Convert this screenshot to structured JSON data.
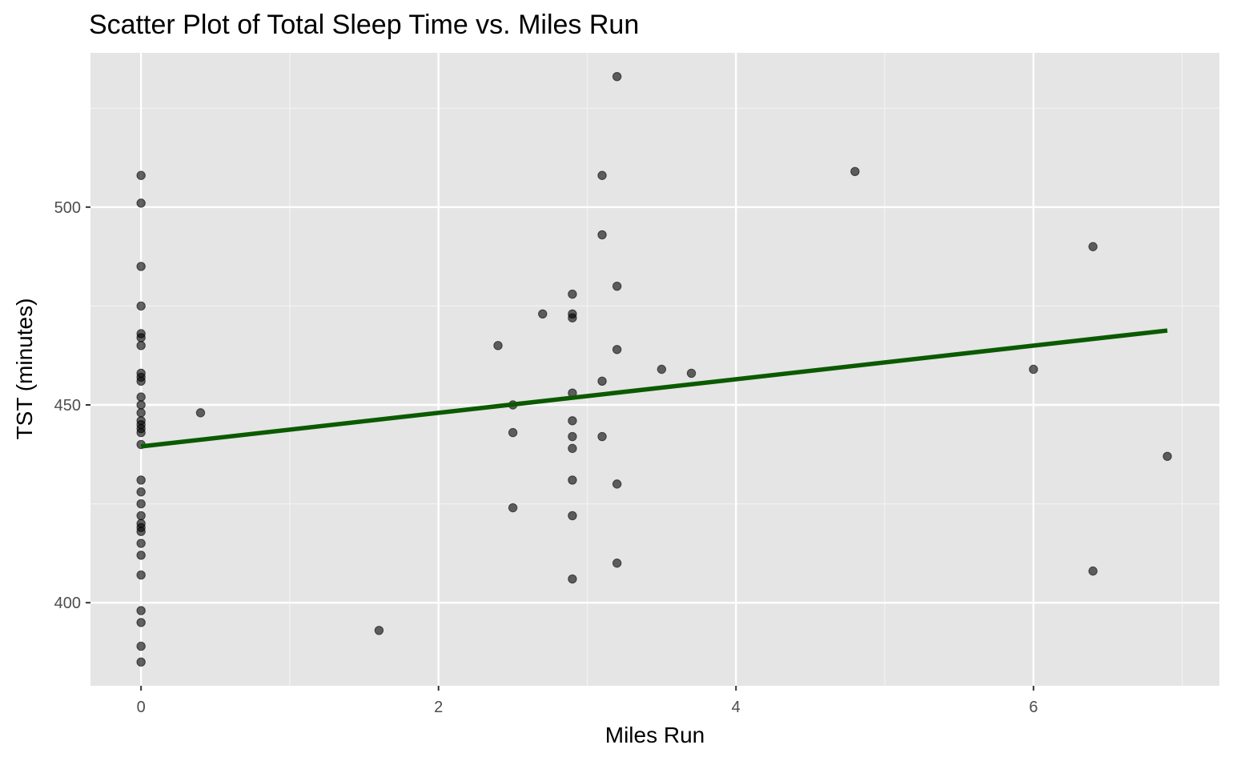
{
  "chart_data": {
    "type": "scatter",
    "title": "Scatter Plot of Total Sleep Time vs. Miles Run",
    "xlabel": "Miles Run",
    "ylabel": "TST (minutes)",
    "xlim": [
      -0.34,
      7.25
    ],
    "ylim": [
      379,
      539
    ],
    "x_ticks": [
      0,
      2,
      4,
      6
    ],
    "y_ticks": [
      400,
      450,
      500
    ],
    "x_tick_labels": [
      "0",
      "2",
      "4",
      "6"
    ],
    "y_tick_labels": [
      "400",
      "450",
      "500"
    ],
    "grid": true,
    "colors": {
      "panel_background": "#e5e5e5",
      "grid_major": "#ffffff",
      "grid_minor": "#f2f2f2",
      "points": "#000000",
      "trend_line": "#0b5a00"
    },
    "points": [
      {
        "x": 0,
        "y": 508
      },
      {
        "x": 0,
        "y": 501
      },
      {
        "x": 0,
        "y": 485
      },
      {
        "x": 0,
        "y": 475
      },
      {
        "x": 0,
        "y": 468
      },
      {
        "x": 0,
        "y": 467
      },
      {
        "x": 0,
        "y": 465
      },
      {
        "x": 0,
        "y": 458
      },
      {
        "x": 0,
        "y": 457
      },
      {
        "x": 0,
        "y": 456
      },
      {
        "x": 0,
        "y": 452
      },
      {
        "x": 0,
        "y": 450
      },
      {
        "x": 0,
        "y": 448
      },
      {
        "x": 0,
        "y": 446
      },
      {
        "x": 0,
        "y": 445
      },
      {
        "x": 0,
        "y": 444
      },
      {
        "x": 0,
        "y": 443
      },
      {
        "x": 0,
        "y": 440
      },
      {
        "x": 0,
        "y": 431
      },
      {
        "x": 0,
        "y": 428
      },
      {
        "x": 0,
        "y": 425
      },
      {
        "x": 0,
        "y": 422
      },
      {
        "x": 0,
        "y": 420
      },
      {
        "x": 0,
        "y": 419
      },
      {
        "x": 0,
        "y": 418
      },
      {
        "x": 0,
        "y": 415
      },
      {
        "x": 0,
        "y": 412
      },
      {
        "x": 0,
        "y": 407
      },
      {
        "x": 0,
        "y": 398
      },
      {
        "x": 0,
        "y": 395
      },
      {
        "x": 0,
        "y": 389
      },
      {
        "x": 0,
        "y": 385
      },
      {
        "x": 0.4,
        "y": 448
      },
      {
        "x": 1.6,
        "y": 393
      },
      {
        "x": 2.4,
        "y": 465
      },
      {
        "x": 2.5,
        "y": 450
      },
      {
        "x": 2.5,
        "y": 443
      },
      {
        "x": 2.5,
        "y": 424
      },
      {
        "x": 2.7,
        "y": 473
      },
      {
        "x": 2.9,
        "y": 478
      },
      {
        "x": 2.9,
        "y": 473
      },
      {
        "x": 2.9,
        "y": 472
      },
      {
        "x": 2.9,
        "y": 453
      },
      {
        "x": 2.9,
        "y": 446
      },
      {
        "x": 2.9,
        "y": 442
      },
      {
        "x": 2.9,
        "y": 439
      },
      {
        "x": 2.9,
        "y": 431
      },
      {
        "x": 2.9,
        "y": 422
      },
      {
        "x": 2.9,
        "y": 406
      },
      {
        "x": 3.1,
        "y": 508
      },
      {
        "x": 3.1,
        "y": 493
      },
      {
        "x": 3.1,
        "y": 456
      },
      {
        "x": 3.1,
        "y": 442
      },
      {
        "x": 3.2,
        "y": 533
      },
      {
        "x": 3.2,
        "y": 480
      },
      {
        "x": 3.2,
        "y": 464
      },
      {
        "x": 3.2,
        "y": 430
      },
      {
        "x": 3.2,
        "y": 410
      },
      {
        "x": 3.5,
        "y": 459
      },
      {
        "x": 3.7,
        "y": 458
      },
      {
        "x": 4.8,
        "y": 509
      },
      {
        "x": 6.0,
        "y": 459
      },
      {
        "x": 6.4,
        "y": 490
      },
      {
        "x": 6.4,
        "y": 408
      },
      {
        "x": 6.9,
        "y": 437
      }
    ],
    "trend_line": {
      "x": [
        0,
        6.9
      ],
      "y": [
        439.5,
        468.8
      ]
    }
  }
}
